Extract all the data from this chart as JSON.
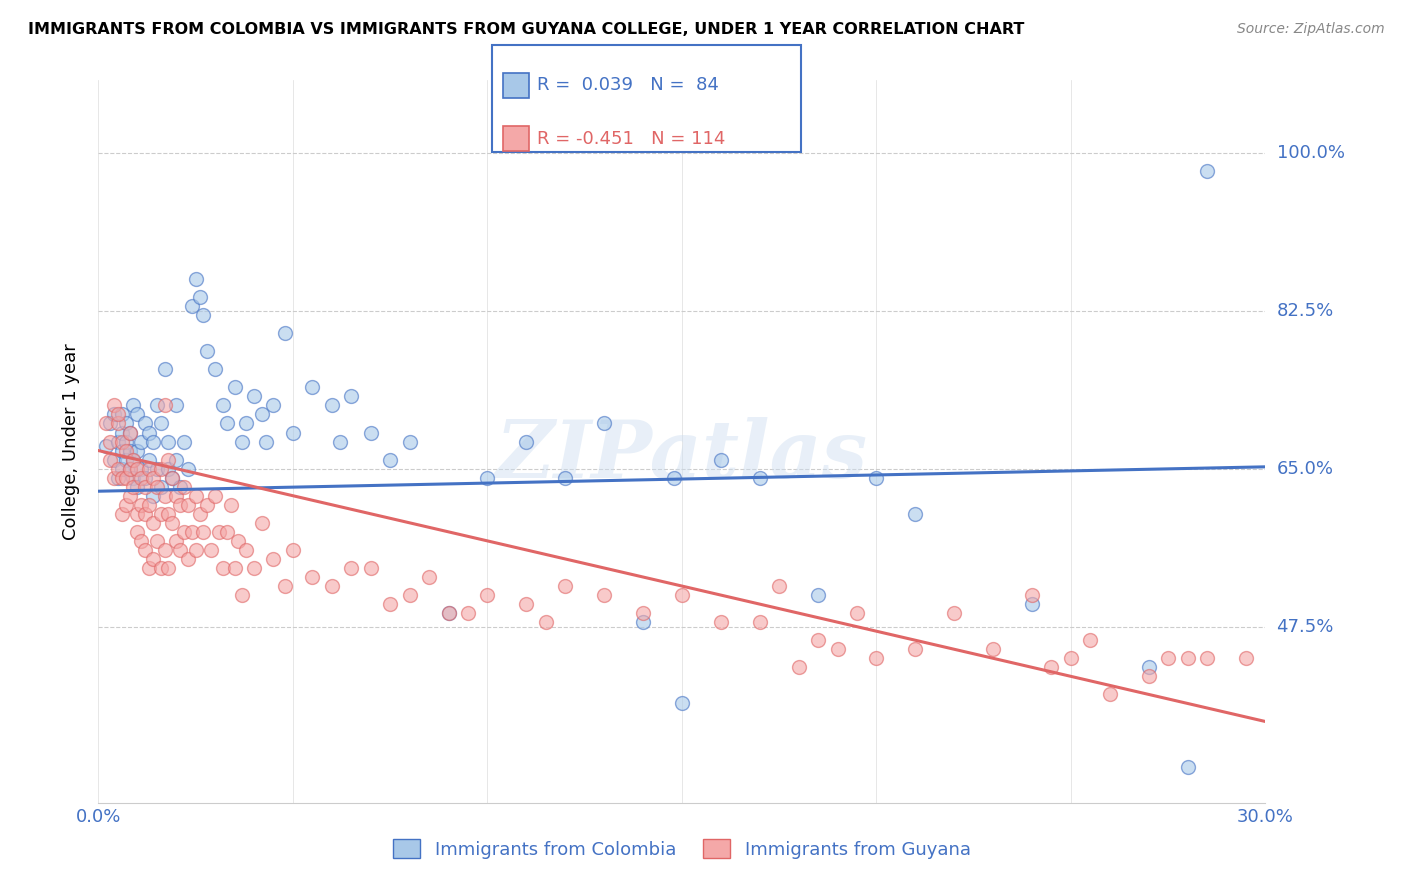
{
  "title": "IMMIGRANTS FROM COLOMBIA VS IMMIGRANTS FROM GUYANA COLLEGE, UNDER 1 YEAR CORRELATION CHART",
  "source": "Source: ZipAtlas.com",
  "ylabel": "College, Under 1 year",
  "colombia_color": "#a8c8e8",
  "guyana_color": "#f4a8a8",
  "colombia_line_color": "#4472c4",
  "guyana_line_color": "#e06666",
  "colombia_R": 0.039,
  "colombia_N": 84,
  "guyana_R": -0.451,
  "guyana_N": 114,
  "watermark": "ZIPatlas",
  "xlim": [
    0.0,
    0.3
  ],
  "ylim": [
    0.28,
    1.08
  ],
  "ytick_vals": [
    0.475,
    0.65,
    0.825,
    1.0
  ],
  "ytick_labels": [
    "47.5%",
    "65.0%",
    "82.5%",
    "100.0%"
  ],
  "xtick_vals": [
    0.0,
    0.05,
    0.1,
    0.15,
    0.2,
    0.25,
    0.3
  ],
  "xtick_labels": [
    "0.0%",
    "",
    "",
    "",
    "",
    "",
    "30.0%"
  ],
  "colombia_scatter": [
    [
      0.002,
      0.675
    ],
    [
      0.003,
      0.7
    ],
    [
      0.004,
      0.66
    ],
    [
      0.004,
      0.71
    ],
    [
      0.005,
      0.68
    ],
    [
      0.005,
      0.64
    ],
    [
      0.006,
      0.67
    ],
    [
      0.006,
      0.69
    ],
    [
      0.006,
      0.71
    ],
    [
      0.006,
      0.65
    ],
    [
      0.007,
      0.66
    ],
    [
      0.007,
      0.68
    ],
    [
      0.007,
      0.7
    ],
    [
      0.008,
      0.65
    ],
    [
      0.008,
      0.67
    ],
    [
      0.008,
      0.69
    ],
    [
      0.009,
      0.64
    ],
    [
      0.009,
      0.66
    ],
    [
      0.009,
      0.72
    ],
    [
      0.01,
      0.63
    ],
    [
      0.01,
      0.67
    ],
    [
      0.01,
      0.71
    ],
    [
      0.011,
      0.65
    ],
    [
      0.011,
      0.68
    ],
    [
      0.012,
      0.64
    ],
    [
      0.012,
      0.7
    ],
    [
      0.013,
      0.66
    ],
    [
      0.013,
      0.69
    ],
    [
      0.014,
      0.62
    ],
    [
      0.014,
      0.68
    ],
    [
      0.015,
      0.65
    ],
    [
      0.015,
      0.72
    ],
    [
      0.016,
      0.63
    ],
    [
      0.016,
      0.7
    ],
    [
      0.017,
      0.76
    ],
    [
      0.018,
      0.65
    ],
    [
      0.018,
      0.68
    ],
    [
      0.019,
      0.64
    ],
    [
      0.02,
      0.66
    ],
    [
      0.02,
      0.72
    ],
    [
      0.021,
      0.63
    ],
    [
      0.022,
      0.68
    ],
    [
      0.023,
      0.65
    ],
    [
      0.024,
      0.83
    ],
    [
      0.025,
      0.86
    ],
    [
      0.026,
      0.84
    ],
    [
      0.027,
      0.82
    ],
    [
      0.028,
      0.78
    ],
    [
      0.03,
      0.76
    ],
    [
      0.032,
      0.72
    ],
    [
      0.033,
      0.7
    ],
    [
      0.035,
      0.74
    ],
    [
      0.037,
      0.68
    ],
    [
      0.038,
      0.7
    ],
    [
      0.04,
      0.73
    ],
    [
      0.042,
      0.71
    ],
    [
      0.043,
      0.68
    ],
    [
      0.045,
      0.72
    ],
    [
      0.048,
      0.8
    ],
    [
      0.05,
      0.69
    ],
    [
      0.055,
      0.74
    ],
    [
      0.06,
      0.72
    ],
    [
      0.062,
      0.68
    ],
    [
      0.065,
      0.73
    ],
    [
      0.07,
      0.69
    ],
    [
      0.075,
      0.66
    ],
    [
      0.08,
      0.68
    ],
    [
      0.09,
      0.49
    ],
    [
      0.1,
      0.64
    ],
    [
      0.11,
      0.68
    ],
    [
      0.12,
      0.64
    ],
    [
      0.13,
      0.7
    ],
    [
      0.14,
      0.48
    ],
    [
      0.15,
      0.39
    ],
    [
      0.2,
      0.64
    ],
    [
      0.21,
      0.6
    ],
    [
      0.24,
      0.5
    ],
    [
      0.27,
      0.43
    ],
    [
      0.28,
      0.32
    ],
    [
      0.285,
      0.98
    ],
    [
      0.148,
      0.64
    ],
    [
      0.16,
      0.66
    ],
    [
      0.17,
      0.64
    ],
    [
      0.185,
      0.51
    ]
  ],
  "guyana_scatter": [
    [
      0.002,
      0.7
    ],
    [
      0.003,
      0.68
    ],
    [
      0.003,
      0.66
    ],
    [
      0.004,
      0.72
    ],
    [
      0.004,
      0.64
    ],
    [
      0.005,
      0.7
    ],
    [
      0.005,
      0.65
    ],
    [
      0.005,
      0.71
    ],
    [
      0.006,
      0.68
    ],
    [
      0.006,
      0.64
    ],
    [
      0.006,
      0.6
    ],
    [
      0.007,
      0.67
    ],
    [
      0.007,
      0.64
    ],
    [
      0.007,
      0.61
    ],
    [
      0.008,
      0.69
    ],
    [
      0.008,
      0.65
    ],
    [
      0.008,
      0.62
    ],
    [
      0.009,
      0.66
    ],
    [
      0.009,
      0.63
    ],
    [
      0.01,
      0.65
    ],
    [
      0.01,
      0.6
    ],
    [
      0.01,
      0.58
    ],
    [
      0.011,
      0.64
    ],
    [
      0.011,
      0.61
    ],
    [
      0.011,
      0.57
    ],
    [
      0.012,
      0.63
    ],
    [
      0.012,
      0.6
    ],
    [
      0.012,
      0.56
    ],
    [
      0.013,
      0.65
    ],
    [
      0.013,
      0.61
    ],
    [
      0.013,
      0.54
    ],
    [
      0.014,
      0.64
    ],
    [
      0.014,
      0.59
    ],
    [
      0.014,
      0.55
    ],
    [
      0.015,
      0.63
    ],
    [
      0.015,
      0.57
    ],
    [
      0.016,
      0.65
    ],
    [
      0.016,
      0.6
    ],
    [
      0.016,
      0.54
    ],
    [
      0.017,
      0.72
    ],
    [
      0.017,
      0.62
    ],
    [
      0.017,
      0.56
    ],
    [
      0.018,
      0.66
    ],
    [
      0.018,
      0.6
    ],
    [
      0.018,
      0.54
    ],
    [
      0.019,
      0.64
    ],
    [
      0.019,
      0.59
    ],
    [
      0.02,
      0.62
    ],
    [
      0.02,
      0.57
    ],
    [
      0.021,
      0.61
    ],
    [
      0.021,
      0.56
    ],
    [
      0.022,
      0.63
    ],
    [
      0.022,
      0.58
    ],
    [
      0.023,
      0.61
    ],
    [
      0.023,
      0.55
    ],
    [
      0.024,
      0.58
    ],
    [
      0.025,
      0.62
    ],
    [
      0.025,
      0.56
    ],
    [
      0.026,
      0.6
    ],
    [
      0.027,
      0.58
    ],
    [
      0.028,
      0.61
    ],
    [
      0.029,
      0.56
    ],
    [
      0.03,
      0.62
    ],
    [
      0.031,
      0.58
    ],
    [
      0.032,
      0.54
    ],
    [
      0.033,
      0.58
    ],
    [
      0.034,
      0.61
    ],
    [
      0.035,
      0.54
    ],
    [
      0.036,
      0.57
    ],
    [
      0.037,
      0.51
    ],
    [
      0.038,
      0.56
    ],
    [
      0.04,
      0.54
    ],
    [
      0.042,
      0.59
    ],
    [
      0.045,
      0.55
    ],
    [
      0.048,
      0.52
    ],
    [
      0.05,
      0.56
    ],
    [
      0.055,
      0.53
    ],
    [
      0.06,
      0.52
    ],
    [
      0.065,
      0.54
    ],
    [
      0.07,
      0.54
    ],
    [
      0.075,
      0.5
    ],
    [
      0.08,
      0.51
    ],
    [
      0.085,
      0.53
    ],
    [
      0.09,
      0.49
    ],
    [
      0.095,
      0.49
    ],
    [
      0.1,
      0.51
    ],
    [
      0.11,
      0.5
    ],
    [
      0.115,
      0.48
    ],
    [
      0.12,
      0.52
    ],
    [
      0.13,
      0.51
    ],
    [
      0.14,
      0.49
    ],
    [
      0.15,
      0.51
    ],
    [
      0.16,
      0.48
    ],
    [
      0.17,
      0.48
    ],
    [
      0.175,
      0.52
    ],
    [
      0.18,
      0.43
    ],
    [
      0.185,
      0.46
    ],
    [
      0.19,
      0.45
    ],
    [
      0.195,
      0.49
    ],
    [
      0.2,
      0.44
    ],
    [
      0.21,
      0.45
    ],
    [
      0.22,
      0.49
    ],
    [
      0.23,
      0.45
    ],
    [
      0.24,
      0.51
    ],
    [
      0.245,
      0.43
    ],
    [
      0.25,
      0.44
    ],
    [
      0.255,
      0.46
    ],
    [
      0.26,
      0.4
    ],
    [
      0.27,
      0.42
    ],
    [
      0.275,
      0.44
    ],
    [
      0.28,
      0.44
    ],
    [
      0.285,
      0.44
    ],
    [
      0.295,
      0.44
    ]
  ],
  "colombia_trend": [
    0.0,
    0.3
  ],
  "colombia_trend_y": [
    0.625,
    0.652
  ],
  "guyana_trend": [
    0.0,
    0.3
  ],
  "guyana_trend_y": [
    0.67,
    0.37
  ]
}
